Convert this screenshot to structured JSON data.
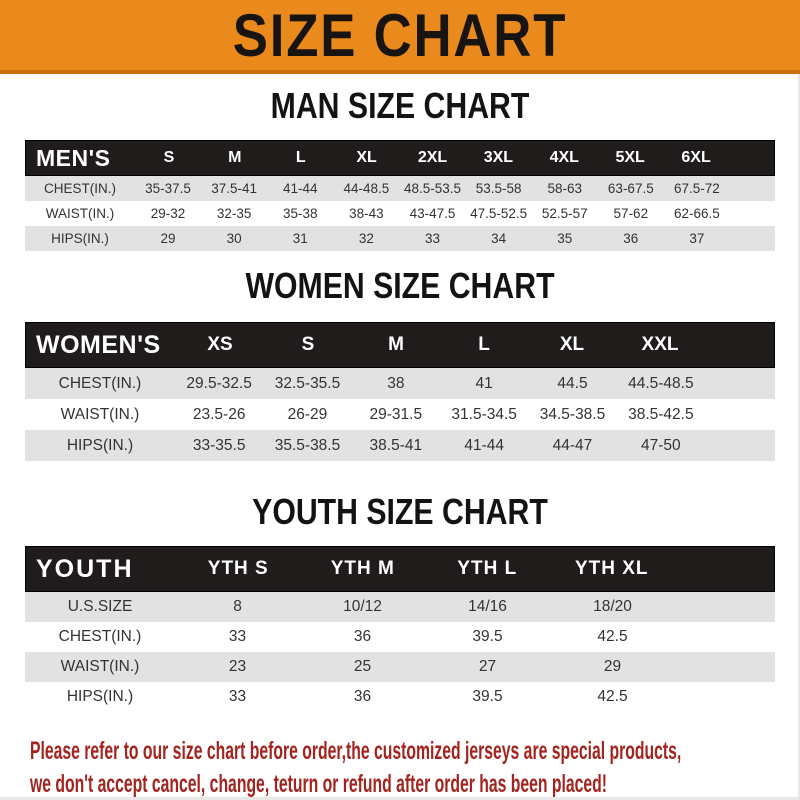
{
  "banner": {
    "title": "SIZE CHART"
  },
  "sections": [
    {
      "id": "men",
      "heading": "MAN SIZE CHART",
      "header_label": "MEN'S",
      "columns": [
        "S",
        "M",
        "L",
        "XL",
        "2XL",
        "3XL",
        "4XL",
        "5XL",
        "6XL"
      ],
      "rows": [
        {
          "label": "CHEST(IN.)",
          "values": [
            "35-37.5",
            "37.5-41",
            "41-44",
            "44-48.5",
            "48.5-53.5",
            "53.5-58",
            "58-63",
            "63-67.5",
            "67.5-72"
          ]
        },
        {
          "label": "WAIST(IN.)",
          "values": [
            "29-32",
            "32-35",
            "35-38",
            "38-43",
            "43-47.5",
            "47.5-52.5",
            "52.5-57",
            "57-62",
            "62-66.5"
          ]
        },
        {
          "label": "HIPS(IN.)",
          "values": [
            "29",
            "30",
            "31",
            "32",
            "33",
            "34",
            "35",
            "36",
            "37"
          ]
        }
      ]
    },
    {
      "id": "women",
      "heading": "WOMEN SIZE CHART",
      "header_label": "WOMEN'S",
      "columns": [
        "XS",
        "S",
        "M",
        "L",
        "XL",
        "XXL"
      ],
      "rows": [
        {
          "label": "CHEST(IN.)",
          "values": [
            "29.5-32.5",
            "32.5-35.5",
            "38",
            "41",
            "44.5",
            "44.5-48.5"
          ]
        },
        {
          "label": "WAIST(IN.)",
          "values": [
            "23.5-26",
            "26-29",
            "29-31.5",
            "31.5-34.5",
            "34.5-38.5",
            "38.5-42.5"
          ]
        },
        {
          "label": "HIPS(IN.)",
          "values": [
            "33-35.5",
            "35.5-38.5",
            "38.5-41",
            "41-44",
            "44-47",
            "47-50"
          ]
        }
      ]
    },
    {
      "id": "youth",
      "heading": "YOUTH SIZE CHART",
      "header_label": "YOUTH",
      "columns": [
        "YTH S",
        "YTH M",
        "YTH L",
        "YTH XL"
      ],
      "rows": [
        {
          "label": "U.S.SIZE",
          "values": [
            "8",
            "10/12",
            "14/16",
            "18/20"
          ]
        },
        {
          "label": "CHEST(IN.)",
          "values": [
            "33",
            "36",
            "39.5",
            "42.5"
          ]
        },
        {
          "label": "WAIST(IN.)",
          "values": [
            "23",
            "25",
            "27",
            "29"
          ]
        },
        {
          "label": "HIPS(IN.)",
          "values": [
            "33",
            "36",
            "39.5",
            "42.5"
          ]
        }
      ]
    }
  ],
  "footer": {
    "line1": "Please refer to our size chart before order,the customized jerseys are special products,",
    "line2": "we don't accept cancel, change, teturn or refund after order has been placed!"
  },
  "colors": {
    "banner_bg": "#EA8A1C",
    "banner_border": "#C96F10",
    "bar_bg": "#201C1C",
    "bar_text": "#FFFFFF",
    "row_shaded": "#E2E2E2",
    "row_plain": "#FFFFFF",
    "row_text": "#333333",
    "footer_red": "#A3241E"
  }
}
